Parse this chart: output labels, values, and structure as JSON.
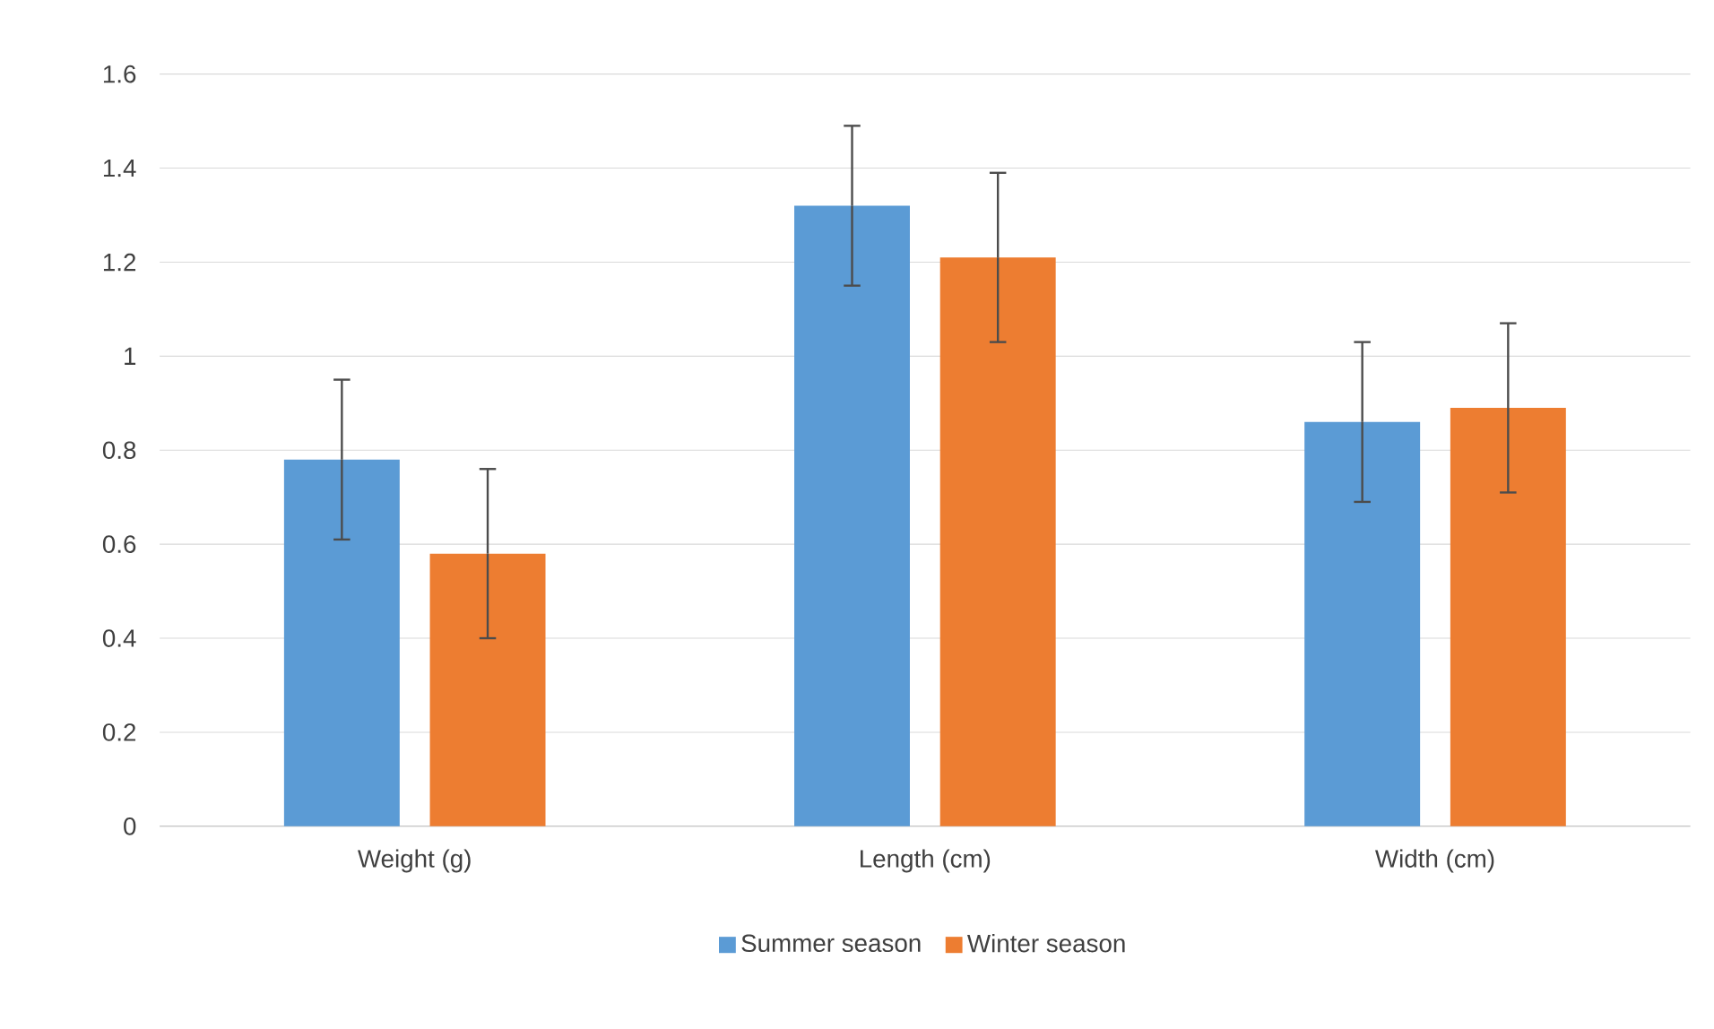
{
  "chart_data": {
    "type": "bar",
    "categories": [
      "Weight (g)",
      "Length (cm)",
      "Width (cm)"
    ],
    "series": [
      {
        "name": "Summer season",
        "color": "#5b9bd5",
        "values": [
          0.78,
          1.32,
          0.86
        ],
        "errors": [
          0.17,
          0.17,
          0.17
        ]
      },
      {
        "name": "Winter season",
        "color": "#ed7d31",
        "values": [
          0.58,
          1.21,
          0.89
        ],
        "errors": [
          0.18,
          0.18,
          0.18
        ]
      }
    ],
    "ylim": [
      0,
      1.6
    ],
    "yticks": [
      0,
      0.2,
      0.4,
      0.6,
      0.8,
      1,
      1.2,
      1.4,
      1.6
    ],
    "grid": "y",
    "legend": "bottom"
  }
}
